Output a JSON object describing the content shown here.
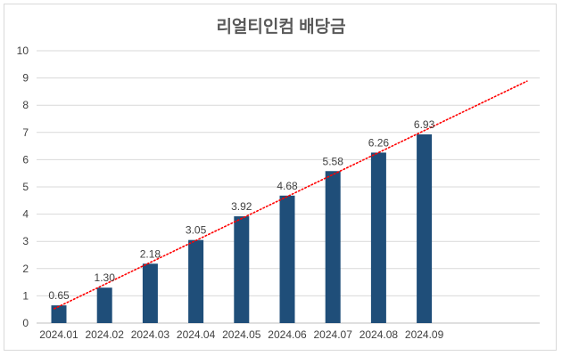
{
  "chart_data": {
    "type": "bar",
    "title": "리얼티인컴 배당금",
    "categories": [
      "2024.01",
      "2024.02",
      "2024.03",
      "2024.04",
      "2024.05",
      "2024.06",
      "2024.07",
      "2024.08",
      "2024.09"
    ],
    "values": [
      0.65,
      1.3,
      2.18,
      3.05,
      3.92,
      4.68,
      5.58,
      6.26,
      6.93
    ],
    "data_labels": [
      "0.65",
      "1.30",
      "2.18",
      "3.05",
      "3.92",
      "4.68",
      "5.58",
      "6.26",
      "6.93"
    ],
    "ylim": [
      0,
      10
    ],
    "yticks": [
      "0",
      "1",
      "2",
      "3",
      "4",
      "5",
      "6",
      "7",
      "8",
      "9",
      "10"
    ],
    "xlabel": "",
    "ylabel": "",
    "grid": true,
    "trendline": {
      "type": "linear",
      "style": "dotted"
    },
    "colors": {
      "bar": "#1f4e79",
      "trend": "#ff0000",
      "grid": "#d9d9d9",
      "axis": "#bfbfbf"
    }
  }
}
